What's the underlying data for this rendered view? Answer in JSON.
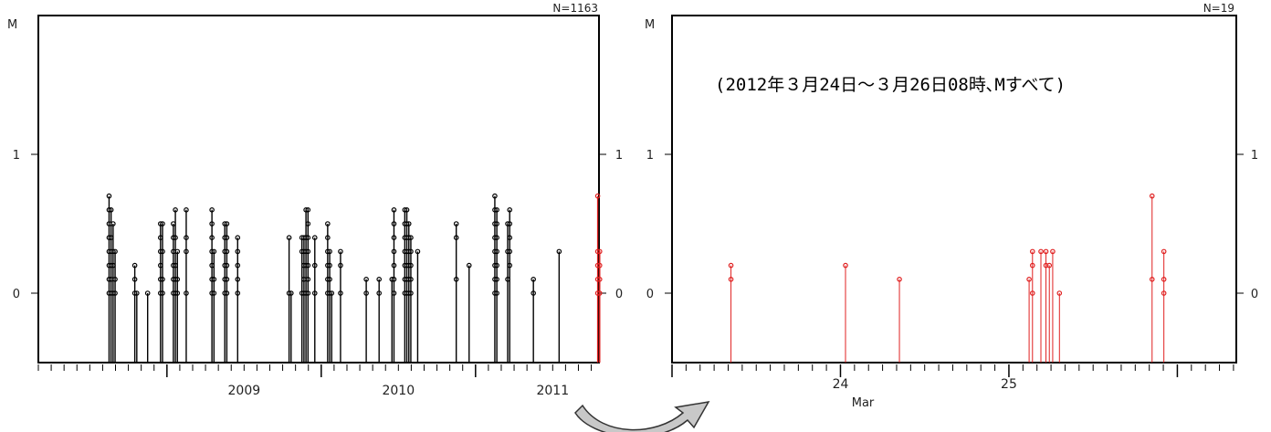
{
  "chart_data": [
    {
      "type": "scatter",
      "style": "stem",
      "ylabel": "M",
      "count_label": "N=1163",
      "ylim": [
        -0.5,
        2
      ],
      "y_ticks": [
        {
          "value": 0,
          "label": "0"
        },
        {
          "value": 1,
          "label": "1"
        }
      ],
      "x_axis": "time",
      "xlim": [
        "2008-03",
        "2011-10"
      ],
      "x_tick_labels": [
        "2009",
        "2010",
        "2011"
      ],
      "grid": false,
      "series": [
        {
          "color": "#000000",
          "stems": [
            {
              "x": "2008-08",
              "y": [
                0.7,
                0.6,
                0.5,
                0.4,
                0.3,
                0.2,
                0.1,
                0.0
              ]
            },
            {
              "x": "2008-08",
              "y": [
                0.6,
                0.4,
                0.3,
                0.2,
                0.1,
                0.0
              ]
            },
            {
              "x": "2008-08",
              "y": [
                0.5,
                0.3,
                0.2,
                0.0
              ]
            },
            {
              "x": "2008-08",
              "y": [
                0.3,
                0.1,
                0.0
              ]
            },
            {
              "x": "2008-10",
              "y": [
                0.2,
                0.1,
                0.0
              ]
            },
            {
              "x": "2008-10",
              "y": [
                0.0
              ]
            },
            {
              "x": "2008-11",
              "y": [
                0.0
              ]
            },
            {
              "x": "2008-12",
              "y": [
                0.5,
                0.4,
                0.3,
                0.2,
                0.1,
                0.0
              ]
            },
            {
              "x": "2008-12",
              "y": [
                0.5,
                0.3,
                0.1,
                0.0
              ]
            },
            {
              "x": "2009-01",
              "y": [
                0.5,
                0.4,
                0.3,
                0.2,
                0.1,
                0.0
              ]
            },
            {
              "x": "2009-01",
              "y": [
                0.6,
                0.4,
                0.2,
                0.1,
                0.0
              ]
            },
            {
              "x": "2009-01",
              "y": [
                0.3,
                0.1,
                0.0
              ]
            },
            {
              "x": "2009-02",
              "y": [
                0.6,
                0.4,
                0.3,
                0.0
              ]
            },
            {
              "x": "2009-04",
              "y": [
                0.6,
                0.5,
                0.4,
                0.3,
                0.2,
                0.1,
                0.0
              ]
            },
            {
              "x": "2009-04",
              "y": [
                0.3,
                0.1,
                0.0
              ]
            },
            {
              "x": "2009-05",
              "y": [
                0.5,
                0.4,
                0.3,
                0.2,
                0.1,
                0.0
              ]
            },
            {
              "x": "2009-05",
              "y": [
                0.5,
                0.4,
                0.3,
                0.2,
                0.1,
                0.0
              ]
            },
            {
              "x": "2009-06",
              "y": [
                0.4,
                0.3,
                0.2,
                0.1,
                0.0
              ]
            },
            {
              "x": "2009-10",
              "y": [
                0.4,
                0.0
              ]
            },
            {
              "x": "2009-10",
              "y": [
                0.0
              ]
            },
            {
              "x": "2009-11",
              "y": [
                0.4,
                0.3,
                0.0
              ]
            },
            {
              "x": "2009-11",
              "y": [
                0.4,
                0.3,
                0.2,
                0.1,
                0.0
              ]
            },
            {
              "x": "2009-11",
              "y": [
                0.6,
                0.4,
                0.3,
                0.2,
                0.0
              ]
            },
            {
              "x": "2009-11",
              "y": [
                0.6,
                0.5,
                0.4,
                0.3,
                0.2,
                0.1,
                0.0
              ]
            },
            {
              "x": "2009-12",
              "y": [
                0.4,
                0.2,
                0.0
              ]
            },
            {
              "x": "2010-01",
              "y": [
                0.5,
                0.4,
                0.3,
                0.2,
                0.1,
                0.0
              ]
            },
            {
              "x": "2010-01",
              "y": [
                0.3,
                0.2,
                0.1,
                0.0
              ]
            },
            {
              "x": "2010-01",
              "y": [
                0.0
              ]
            },
            {
              "x": "2010-02",
              "y": [
                0.3,
                0.2,
                0.0
              ]
            },
            {
              "x": "2010-04",
              "y": [
                0.1,
                0.0
              ]
            },
            {
              "x": "2010-05",
              "y": [
                0.1,
                0.0
              ]
            },
            {
              "x": "2010-06",
              "y": [
                0.1
              ]
            },
            {
              "x": "2010-06",
              "y": [
                0.6,
                0.5,
                0.4,
                0.3,
                0.2,
                0.1,
                0.0
              ]
            },
            {
              "x": "2010-07",
              "y": [
                0.6,
                0.5,
                0.4,
                0.3,
                0.2,
                0.1,
                0.0
              ]
            },
            {
              "x": "2010-07",
              "y": [
                0.6,
                0.5,
                0.4,
                0.3,
                0.2,
                0.1,
                0.0
              ]
            },
            {
              "x": "2010-07",
              "y": [
                0.5,
                0.4,
                0.3,
                0.2,
                0.1,
                0.0
              ]
            },
            {
              "x": "2010-07",
              "y": [
                0.4,
                0.3,
                0.2,
                0.1,
                0.0
              ]
            },
            {
              "x": "2010-08",
              "y": [
                0.3
              ]
            },
            {
              "x": "2010-11",
              "y": [
                0.5,
                0.4,
                0.1
              ]
            },
            {
              "x": "2010-12",
              "y": [
                0.2
              ]
            },
            {
              "x": "2011-02",
              "y": [
                0.7,
                0.6,
                0.5,
                0.4,
                0.3,
                0.2,
                0.1,
                0.0
              ]
            },
            {
              "x": "2011-02",
              "y": [
                0.6,
                0.5,
                0.4,
                0.3,
                0.2,
                0.1,
                0.0
              ]
            },
            {
              "x": "2011-03",
              "y": [
                0.5,
                0.3,
                0.1
              ]
            },
            {
              "x": "2011-03",
              "y": [
                0.6,
                0.5,
                0.4,
                0.3,
                0.2
              ]
            },
            {
              "x": "2011-05",
              "y": [
                0.1,
                0.0
              ]
            },
            {
              "x": "2011-07",
              "y": [
                0.3
              ]
            }
          ]
        },
        {
          "color": "#e02020",
          "stems": [
            {
              "x": "2011-10",
              "y": [
                0.7,
                0.3,
                0.2,
                0.1,
                0.0
              ]
            },
            {
              "x": "2011-10",
              "y": [
                0.3,
                0.2,
                0.1,
                0.0
              ]
            }
          ]
        }
      ]
    },
    {
      "type": "scatter",
      "style": "stem",
      "ylabel": "M",
      "count_label": "N=19",
      "annotation": "(2012年３月24日～３月26日08時､Mすべて)",
      "ylim": [
        -0.5,
        2
      ],
      "y_ticks": [
        {
          "value": 0,
          "label": "0"
        },
        {
          "value": 1,
          "label": "1"
        }
      ],
      "x_axis": "day of March 2012",
      "xlabel": "Mar",
      "xlim": [
        23.0,
        26.35
      ],
      "x_tick_labels": [
        {
          "value": 24,
          "label": "24"
        },
        {
          "value": 25,
          "label": "25"
        }
      ],
      "grid": false,
      "series": [
        {
          "color": "#e02020",
          "stems": [
            {
              "x": 23.35,
              "y": [
                0.2,
                0.1
              ]
            },
            {
              "x": 24.03,
              "y": [
                0.2
              ]
            },
            {
              "x": 24.35,
              "y": [
                0.1
              ]
            },
            {
              "x": 25.12,
              "y": [
                0.1
              ]
            },
            {
              "x": 25.14,
              "y": [
                0.3,
                0.2,
                0.0
              ]
            },
            {
              "x": 25.19,
              "y": [
                0.3
              ]
            },
            {
              "x": 25.22,
              "y": [
                0.3,
                0.2
              ]
            },
            {
              "x": 25.24,
              "y": [
                0.2
              ]
            },
            {
              "x": 25.26,
              "y": [
                0.3
              ]
            },
            {
              "x": 25.3,
              "y": [
                0.0
              ]
            },
            {
              "x": 25.85,
              "y": [
                0.7,
                0.1
              ]
            },
            {
              "x": 25.92,
              "y": [
                0.3,
                0.1,
                0.0
              ]
            }
          ]
        }
      ]
    }
  ],
  "decor": {
    "arrow_fill": "#c8c8c8",
    "arrow_stroke": "#333333"
  }
}
